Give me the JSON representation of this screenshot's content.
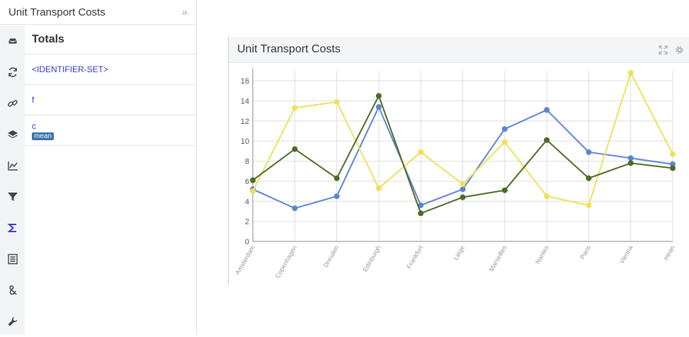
{
  "sidebar": {
    "title": "Unit Transport Costs",
    "collapse_glyph": "»",
    "icons": [
      "tray-icon",
      "refresh-icon",
      "link-icon",
      "layers-icon",
      "line-chart-icon",
      "filter-icon",
      "sigma-icon",
      "list-icon",
      "ampersand-icon",
      "wrench-icon"
    ],
    "active_icon": "sigma-icon",
    "panel_title": "Totals",
    "rows": [
      {
        "label": "<IDENTIFIER-SET>",
        "badge": ""
      },
      {
        "label": "f",
        "badge": ""
      },
      {
        "label": "c",
        "badge": "mean"
      }
    ]
  },
  "widget": {
    "title": "Unit Transport Costs"
  },
  "chart_data": {
    "type": "line",
    "title": "",
    "xlabel": "",
    "ylabel": "",
    "ylim": [
      0,
      17
    ],
    "yticks": [
      0,
      2,
      4,
      6,
      8,
      10,
      12,
      14,
      16
    ],
    "grid": true,
    "categories": [
      "Amsterdam",
      "Copenhagen",
      "Dresden",
      "Edinburgh",
      "Frankfurt",
      "Liege",
      "Marseilles",
      "Nantes",
      "Paris",
      "Vienna",
      "mean"
    ],
    "series": [
      {
        "color": "#5b84d4",
        "values": [
          5.2,
          3.3,
          4.5,
          13.4,
          3.6,
          5.2,
          11.2,
          13.1,
          8.9,
          8.3,
          7.7
        ]
      },
      {
        "color": "#f0e05a",
        "values": [
          5.0,
          13.3,
          13.9,
          5.3,
          8.9,
          5.7,
          9.9,
          4.5,
          3.6,
          16.8,
          8.7
        ]
      },
      {
        "color": "#4d6b24",
        "values": [
          6.1,
          9.2,
          6.3,
          14.5,
          2.8,
          4.4,
          5.1,
          10.1,
          6.3,
          7.8,
          7.3
        ]
      }
    ]
  }
}
